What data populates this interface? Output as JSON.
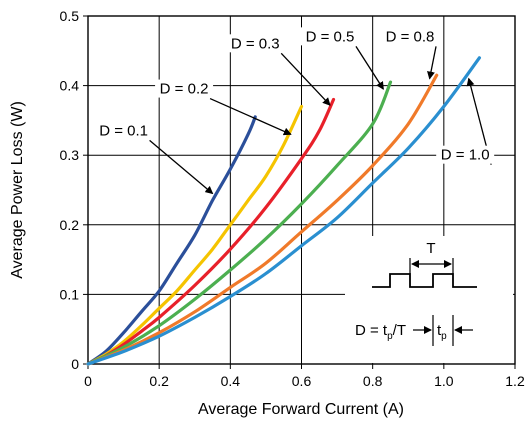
{
  "chart_data": {
    "type": "line",
    "xlabel": "Average Forward Current (A)",
    "ylabel": "Average Power Loss (W)",
    "xlim": [
      0,
      1.2
    ],
    "ylim": [
      0,
      0.5
    ],
    "x_ticks": [
      "0",
      "0.2",
      "0.4",
      "0.6",
      "0.8",
      "1.0",
      "1.2"
    ],
    "y_ticks": [
      "0",
      "0.1",
      "0.2",
      "0.3",
      "0.4",
      "0.5"
    ],
    "grid": true,
    "series": [
      {
        "name": "D = 0.1",
        "color": "#2b4f9a",
        "points": [
          [
            0,
            0
          ],
          [
            0.05,
            0.018
          ],
          [
            0.1,
            0.045
          ],
          [
            0.15,
            0.075
          ],
          [
            0.2,
            0.105
          ],
          [
            0.25,
            0.145
          ],
          [
            0.3,
            0.185
          ],
          [
            0.35,
            0.235
          ],
          [
            0.4,
            0.28
          ],
          [
            0.45,
            0.33
          ],
          [
            0.47,
            0.355
          ]
        ]
      },
      {
        "name": "D = 0.2",
        "color": "#f5c400",
        "points": [
          [
            0,
            0
          ],
          [
            0.05,
            0.014
          ],
          [
            0.1,
            0.032
          ],
          [
            0.15,
            0.055
          ],
          [
            0.2,
            0.08
          ],
          [
            0.25,
            0.105
          ],
          [
            0.3,
            0.135
          ],
          [
            0.35,
            0.165
          ],
          [
            0.4,
            0.2
          ],
          [
            0.45,
            0.235
          ],
          [
            0.5,
            0.27
          ],
          [
            0.55,
            0.315
          ],
          [
            0.6,
            0.37
          ]
        ]
      },
      {
        "name": "D = 0.3",
        "color": "#e8202a",
        "points": [
          [
            0,
            0
          ],
          [
            0.05,
            0.012
          ],
          [
            0.1,
            0.028
          ],
          [
            0.15,
            0.047
          ],
          [
            0.2,
            0.067
          ],
          [
            0.3,
            0.113
          ],
          [
            0.4,
            0.165
          ],
          [
            0.5,
            0.225
          ],
          [
            0.6,
            0.295
          ],
          [
            0.65,
            0.335
          ],
          [
            0.69,
            0.38
          ]
        ]
      },
      {
        "name": "D = 0.5",
        "color": "#4caf50",
        "points": [
          [
            0,
            0
          ],
          [
            0.1,
            0.024
          ],
          [
            0.2,
            0.055
          ],
          [
            0.3,
            0.093
          ],
          [
            0.4,
            0.135
          ],
          [
            0.5,
            0.18
          ],
          [
            0.6,
            0.23
          ],
          [
            0.7,
            0.285
          ],
          [
            0.8,
            0.345
          ],
          [
            0.85,
            0.405
          ]
        ]
      },
      {
        "name": "D = 0.8",
        "color": "#f07a2a",
        "points": [
          [
            0,
            0
          ],
          [
            0.1,
            0.02
          ],
          [
            0.2,
            0.045
          ],
          [
            0.3,
            0.075
          ],
          [
            0.4,
            0.11
          ],
          [
            0.5,
            0.145
          ],
          [
            0.6,
            0.19
          ],
          [
            0.7,
            0.235
          ],
          [
            0.8,
            0.285
          ],
          [
            0.9,
            0.345
          ],
          [
            0.98,
            0.415
          ]
        ]
      },
      {
        "name": "D = 1.0",
        "color": "#2a8fd0",
        "points": [
          [
            0,
            0
          ],
          [
            0.1,
            0.018
          ],
          [
            0.2,
            0.04
          ],
          [
            0.3,
            0.067
          ],
          [
            0.4,
            0.097
          ],
          [
            0.5,
            0.13
          ],
          [
            0.6,
            0.17
          ],
          [
            0.7,
            0.21
          ],
          [
            0.8,
            0.26
          ],
          [
            0.9,
            0.31
          ],
          [
            1.0,
            0.37
          ],
          [
            1.1,
            0.44
          ]
        ]
      }
    ],
    "annotations": [
      {
        "label": "D = 0.1",
        "pos": [
          0.1,
          0.33
        ],
        "arrow_to": [
          0.35,
          0.245
        ]
      },
      {
        "label": "D = 0.2",
        "pos": [
          0.27,
          0.39
        ],
        "arrow_to": [
          0.57,
          0.33
        ]
      },
      {
        "label": "D = 0.3",
        "pos": [
          0.47,
          0.455
        ],
        "arrow_to": [
          0.68,
          0.372
        ]
      },
      {
        "label": "D = 0.5",
        "pos": [
          0.68,
          0.465
        ],
        "arrow_to": [
          0.83,
          0.395
        ]
      },
      {
        "label": "D = 0.8",
        "pos": [
          0.905,
          0.465
        ],
        "arrow_to": [
          0.96,
          0.41
        ]
      },
      {
        "label": "D = 1.0",
        "pos": [
          1.06,
          0.295
        ],
        "arrow_to": [
          1.07,
          0.41
        ]
      }
    ],
    "inset": {
      "period_label": "T",
      "formula_text": "D = t",
      "formula_sub": "p",
      "formula_tail": "/T",
      "pulse_label": "t",
      "pulse_sub": "p"
    }
  }
}
